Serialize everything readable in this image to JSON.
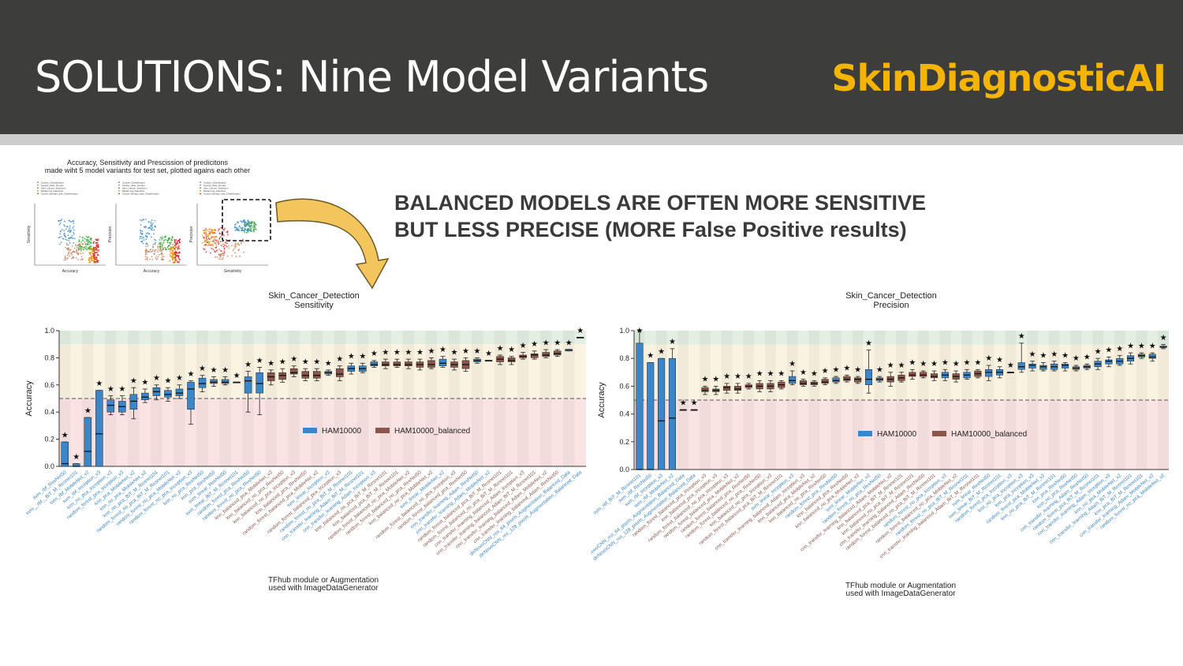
{
  "header": {
    "title": "SOLUTIONS: Nine Model Variants",
    "logo_text": "SkinDiagnosticAI",
    "bg_color": "#3d3d3b",
    "logo_color": "#f4b400"
  },
  "headline": {
    "line1": "BALANCED MODELS ARE OFTEN MORE SENSITIVE",
    "line2": "BUT LESS PRECISE (MORE False Positive results)"
  },
  "thumbnail": {
    "title_line1": "Accuracy, Sensitivity and Prescission of predicitons",
    "title_line2": "made wiht 5 model variants for test set, plotted agains each other",
    "panels": [
      {
        "xlabel": "Accuracy",
        "ylabel": "Sensitivity"
      },
      {
        "xlabel": "Accuracy",
        "ylabel": "Precision"
      },
      {
        "xlabel": "Sensitivity",
        "ylabel": "Precision"
      }
    ],
    "legend_items": [
      "Cancer_Classification",
      "Cancer_Risk_Groups",
      "Skin_Cancer_Detection",
      "Melanoma_Detection",
      "Cancer_Benign_and_Classification"
    ],
    "series_colors": [
      "#3a86c8",
      "#c47d52",
      "#3aa63a",
      "#e8940c",
      "#d62020"
    ]
  },
  "chart_data": [
    {
      "type": "box",
      "title": "Skin_Cancer_Detection\nSensitivity",
      "title_line1": "Skin_Cancer_Detection",
      "title_line2": "Sensitivity",
      "xlabel_line1": "TFhub module or Augmentation",
      "xlabel_line2": "used with ImageDataGenerator",
      "ylabel": "Accuracy",
      "ylim": [
        0,
        1.0
      ],
      "yticks": [
        "0.0",
        "0.2",
        "0.4",
        "0.6",
        "0.8",
        "1.0"
      ],
      "threshold": 0.5,
      "legend": [
        "HAM10000",
        "HAM10000_balanced"
      ],
      "colors": {
        "HAM10000": "#3a86c8",
        "HAM10000_balanced": "#8c564b"
      },
      "categories": [
        "svm_rbf_ResNet50",
        "svm__rbf__BiT_M_Resnet101",
        "svm_rbf_MobileNet_v2",
        "svm_rbf_Inception_v3",
        "knn_no_pca_Inception_v3",
        "random_forest_pca_Inception_v3",
        "knn_pca_MobileNet_v2",
        "knn_no_pca_MobileNet_v2",
        "knn_no_pca_BiT_M_Resnet101",
        "random_forest_no_pca_BiT_M_Resnet101",
        "random_forest_no_pca_MobileNet_v2",
        "random_forest_no_pca_Inception_v3",
        "knn_no_pca_ResNet50",
        "knn_pca_ResNet50",
        "svm_linear_ResNet50",
        "svm_linear_BiT_M_Resnet101",
        "random_forest_pca_ResNet50",
        "random_forest_no_pca_ResNet50",
        "knn_balanced_pca_MobileNet_v2",
        "knn_balanced_no_pca_ResNet50",
        "knn_balanced_no_pca_Inception_v3",
        "knn_balanced_pca_ResNet50",
        "random_forest_balanced_pca_MobileNet_v2",
        "svm_linear_Inception_v3",
        "random_forest_balanced_pca_Inception_v3",
        "random_forest_no_pca_BiT_M_Resnet101",
        "cnn_transfer_learning_Adam_BiT_M_Resnet101",
        "cnn_transfer_learning_Adam_Inception_v3",
        "knn_balanced_no_pca_BiT_M_Resnet101",
        "knn_balanced_pca_BiT_M_Resnet101",
        "random_forest_balanced_no_pca_MobileNet_v2",
        "random_forest_balanced_no_pca_ResNet50",
        "knn_balanced_no_pca_MobileNet_v2",
        "svm_linear_MobileNet_v2",
        "random_forest_balanced_no_pca_Inception_v3",
        "random_forest_balanced_pca_ResNet50",
        "cnn_transfer_learning_Adam_ResNet50",
        "cnn_transfer_learning_Adam_MobileNet_v2",
        "random_forest_balanced_pca_BiT_M_Resnet101",
        "random_forest_balanced_no_pca_BiT_M_Resnet101",
        "cnn_transfer_learning_balanced_Adam_Inception_v3",
        "cnn_transfer_learning_balanced_Adam_BiT_M_Resnet101",
        "cnn_transfer_learning_balanced_Adam_MobileNet_v2",
        "cnn_transfer_learning_balanced_Adam_ResNet50",
        "deNovoCNN_res_64_pixels_Augmentation_Balanced_Data",
        "deNovoCNN_res_128_pixels_Augmentation_Balanced_Data"
      ],
      "groups": [
        "A",
        "A",
        "A",
        "A",
        "A",
        "A",
        "A",
        "A",
        "A",
        "A",
        "A",
        "A",
        "A",
        "A",
        "A",
        "A",
        "A",
        "A",
        "B",
        "B",
        "B",
        "B",
        "B",
        "A",
        "B",
        "A",
        "A",
        "A",
        "B",
        "B",
        "B",
        "B",
        "B",
        "A",
        "B",
        "B",
        "A",
        "A",
        "B",
        "B",
        "B",
        "B",
        "B",
        "B",
        "A",
        "A"
      ],
      "boxes": [
        [
          0.0,
          0.0,
          0.02,
          0.18,
          0.18
        ],
        [
          0.0,
          0.0,
          0.0,
          0.02,
          0.02
        ],
        [
          0.0,
          0.0,
          0.11,
          0.36,
          0.36
        ],
        [
          0.0,
          0.0,
          0.24,
          0.56,
          0.56
        ],
        [
          0.38,
          0.4,
          0.45,
          0.49,
          0.52
        ],
        [
          0.38,
          0.4,
          0.44,
          0.48,
          0.52
        ],
        [
          0.35,
          0.42,
          0.48,
          0.53,
          0.58
        ],
        [
          0.47,
          0.49,
          0.51,
          0.54,
          0.57
        ],
        [
          0.49,
          0.52,
          0.55,
          0.58,
          0.6
        ],
        [
          0.48,
          0.51,
          0.53,
          0.56,
          0.58
        ],
        [
          0.5,
          0.52,
          0.54,
          0.57,
          0.6
        ],
        [
          0.31,
          0.42,
          0.57,
          0.62,
          0.63
        ],
        [
          0.55,
          0.58,
          0.61,
          0.65,
          0.67
        ],
        [
          0.59,
          0.61,
          0.62,
          0.64,
          0.66
        ],
        [
          0.6,
          0.61,
          0.62,
          0.64,
          0.66
        ],
        [
          0.62,
          0.62,
          0.62,
          0.62,
          0.62
        ],
        [
          0.4,
          0.54,
          0.63,
          0.66,
          0.7
        ],
        [
          0.38,
          0.54,
          0.61,
          0.69,
          0.73
        ],
        [
          0.6,
          0.63,
          0.66,
          0.69,
          0.71
        ],
        [
          0.62,
          0.64,
          0.67,
          0.69,
          0.72
        ],
        [
          0.66,
          0.68,
          0.69,
          0.72,
          0.74
        ],
        [
          0.63,
          0.65,
          0.67,
          0.7,
          0.72
        ],
        [
          0.63,
          0.65,
          0.67,
          0.7,
          0.72
        ],
        [
          0.67,
          0.68,
          0.69,
          0.7,
          0.71
        ],
        [
          0.63,
          0.66,
          0.68,
          0.72,
          0.74
        ],
        [
          0.68,
          0.7,
          0.72,
          0.74,
          0.76
        ],
        [
          0.69,
          0.7,
          0.72,
          0.74,
          0.76
        ],
        [
          0.73,
          0.74,
          0.75,
          0.77,
          0.78
        ],
        [
          0.72,
          0.74,
          0.75,
          0.77,
          0.79
        ],
        [
          0.73,
          0.74,
          0.75,
          0.77,
          0.79
        ],
        [
          0.72,
          0.74,
          0.75,
          0.77,
          0.79
        ],
        [
          0.71,
          0.73,
          0.75,
          0.77,
          0.79
        ],
        [
          0.72,
          0.73,
          0.75,
          0.78,
          0.8
        ],
        [
          0.73,
          0.74,
          0.76,
          0.79,
          0.81
        ],
        [
          0.71,
          0.73,
          0.75,
          0.77,
          0.79
        ],
        [
          0.7,
          0.72,
          0.75,
          0.78,
          0.8
        ],
        [
          0.76,
          0.77,
          0.78,
          0.79,
          0.8
        ],
        [
          0.78,
          0.78,
          0.78,
          0.78,
          0.78
        ],
        [
          0.75,
          0.77,
          0.79,
          0.81,
          0.82
        ],
        [
          0.75,
          0.77,
          0.78,
          0.8,
          0.81
        ],
        [
          0.79,
          0.8,
          0.81,
          0.82,
          0.84
        ],
        [
          0.79,
          0.8,
          0.82,
          0.83,
          0.85
        ],
        [
          0.8,
          0.81,
          0.82,
          0.84,
          0.86
        ],
        [
          0.81,
          0.82,
          0.83,
          0.85,
          0.86
        ],
        [
          0.85,
          0.85,
          0.86,
          0.86,
          0.86
        ],
        [
          0.95,
          0.95,
          0.95,
          0.95,
          0.95
        ]
      ]
    },
    {
      "type": "box",
      "title": "Skin_Cancer_Detection\nPrecision",
      "title_line1": "Skin_Cancer_Detection",
      "title_line2": "Precision",
      "xlabel_line1": "TFhub module or Augmentation",
      "xlabel_line2": "used with ImageDataGenerator",
      "ylabel": "Accuracy",
      "ylim": [
        0,
        1.0
      ],
      "yticks": [
        "0.0",
        "0.2",
        "0.4",
        "0.6",
        "0.8",
        "1.0"
      ],
      "threshold": 0.5,
      "legend": [
        "HAM10000",
        "HAM10000_balanced"
      ],
      "colors": {
        "HAM10000": "#3a86c8",
        "HAM10000_balanced": "#8c564b"
      },
      "categories": [
        "svm_rbf_BiT_M_Resnet101",
        "svm_rbf_ResNet50",
        "svm_rbf_Inception_v3",
        "svm_rbf_MobileNet_v2",
        "deNovoCNN_res_64_pixels_Augmentation_Balanced_Data",
        "deNovoCNN_res_128_pixels_Augmentation_Balanced_Data",
        "random_forest_balanced_pca_Inception_v3",
        "knn_balanced_pca_Inception_v3",
        "random_forest_balanced_no_pca_Inception_v3",
        "random_forest_balanced_pca_MobileNet_v2",
        "random_forest_balanced_pca_ResNet50",
        "random_forest_balanced_no_pca_ResNet50",
        "knn_balanced_no_pca_Inception_v3",
        "random_forest_balanced_pca_BiT_M_Resnet101",
        "svm_linear_Inception_v3",
        "cnn_transfer_learning_balanced_Adam_Inception_v3",
        "knn_balanced_pca_MobileNet_v2",
        "knn_balanced_no_pca_ResNet50",
        "random_forest_pca_ResNet50",
        "knn_balanced_pca_ResNet50",
        "knn_balanced_no_pca_MobileNet_v2",
        "svm_linear_MobileNet_v2",
        "random_forest_no_pca_ResNet50",
        "cnn_transfer_learning_balanced_Adam_MobileNet_v2",
        "knn_balanced_pca_BiT_M_Resnet101",
        "knn_balanced_no_pca_BiT_M_Resnet101",
        "cnn_transfer_learning_balanced_Adam_ResNet50",
        "random_forest_balanced_no_pca_BiT_M_Resnet101",
        "random_forest_no_pca_Inception_v3",
        "random_forest_balanced_no_pca_MobileNet_v2",
        "random_forest_no_pca_BiT_M_Resnet101",
        "cnn_transfer_learning_balanced_Adam_BiT_M_Resnet101",
        "svm_linear_ResNet50",
        "svm_linear_BiT_M_Resnet101",
        "random_forest_pca_Inception_v3",
        "knn_no_pca_Inception_v3",
        "knn_pca_Inception_v3",
        "random_forest_pca_MobileNet_v2",
        "knn_no_pca_BiT_M_Resnet101",
        "knn_pca_ResNet50",
        "knn_no_pca_ResNet50",
        "cnn_transfer_learning_Adam_ResNet50",
        "random_forest_pca_BiT_M_Resnet101",
        "cnn_transfer_learning_Adam_Inception_v3",
        "knn_no_pca_MobileNet_v2",
        "cnn_transfer_learning_Adam_BiT_M_Resnet101",
        "knn_pca_BiT_M_Resnet101",
        "cnn_transfer_learning_Adam_MobileNet_v2",
        "random_forest_no_pca_MobileNet_v2"
      ],
      "groups": [
        "A",
        "A",
        "A",
        "A",
        "A",
        "A",
        "B",
        "B",
        "B",
        "B",
        "B",
        "B",
        "B",
        "B",
        "A",
        "B",
        "B",
        "B",
        "A",
        "B",
        "B",
        "A",
        "A",
        "B",
        "B",
        "B",
        "B",
        "B",
        "A",
        "B",
        "A",
        "B",
        "A",
        "A",
        "A",
        "A",
        "A",
        "A",
        "A",
        "A",
        "A",
        "A",
        "A",
        "A",
        "A",
        "A",
        "A",
        "A",
        "A"
      ],
      "boxes": [
        [
          0.0,
          0.0,
          0.0,
          0.91,
          1.0
        ],
        [
          0.0,
          0.0,
          0.0,
          0.77,
          0.77
        ],
        [
          0.0,
          0.0,
          0.35,
          0.8,
          0.8
        ],
        [
          0.0,
          0.0,
          0.37,
          0.8,
          0.87
        ],
        [
          0.43,
          0.43,
          0.43,
          0.43,
          0.43
        ],
        [
          0.43,
          0.43,
          0.43,
          0.43,
          0.43
        ],
        [
          0.54,
          0.56,
          0.57,
          0.59,
          0.6
        ],
        [
          0.54,
          0.56,
          0.57,
          0.58,
          0.6
        ],
        [
          0.55,
          0.57,
          0.59,
          0.6,
          0.62
        ],
        [
          0.55,
          0.57,
          0.58,
          0.6,
          0.62
        ],
        [
          0.58,
          0.59,
          0.6,
          0.61,
          0.62
        ],
        [
          0.56,
          0.58,
          0.6,
          0.62,
          0.64
        ],
        [
          0.56,
          0.58,
          0.6,
          0.62,
          0.64
        ],
        [
          0.58,
          0.59,
          0.61,
          0.63,
          0.64
        ],
        [
          0.61,
          0.62,
          0.64,
          0.67,
          0.71
        ],
        [
          0.6,
          0.61,
          0.62,
          0.64,
          0.65
        ],
        [
          0.6,
          0.61,
          0.62,
          0.63,
          0.64
        ],
        [
          0.61,
          0.62,
          0.63,
          0.65,
          0.66
        ],
        [
          0.62,
          0.63,
          0.64,
          0.66,
          0.67
        ],
        [
          0.63,
          0.64,
          0.65,
          0.67,
          0.68
        ],
        [
          0.62,
          0.63,
          0.65,
          0.66,
          0.67
        ],
        [
          0.55,
          0.61,
          0.65,
          0.72,
          0.86
        ],
        [
          0.63,
          0.64,
          0.65,
          0.66,
          0.67
        ],
        [
          0.6,
          0.63,
          0.65,
          0.67,
          0.7
        ],
        [
          0.63,
          0.64,
          0.66,
          0.68,
          0.7
        ],
        [
          0.65,
          0.67,
          0.68,
          0.7,
          0.72
        ],
        [
          0.66,
          0.67,
          0.68,
          0.7,
          0.71
        ],
        [
          0.64,
          0.66,
          0.67,
          0.69,
          0.71
        ],
        [
          0.64,
          0.66,
          0.68,
          0.7,
          0.72
        ],
        [
          0.63,
          0.65,
          0.67,
          0.69,
          0.71
        ],
        [
          0.65,
          0.66,
          0.68,
          0.7,
          0.72
        ],
        [
          0.66,
          0.67,
          0.69,
          0.71,
          0.72
        ],
        [
          0.64,
          0.67,
          0.7,
          0.72,
          0.75
        ],
        [
          0.66,
          0.68,
          0.7,
          0.72,
          0.74
        ],
        [
          0.7,
          0.7,
          0.7,
          0.7,
          0.7
        ],
        [
          0.7,
          0.72,
          0.74,
          0.77,
          0.91
        ],
        [
          0.71,
          0.73,
          0.75,
          0.76,
          0.78
        ],
        [
          0.71,
          0.72,
          0.74,
          0.75,
          0.77
        ],
        [
          0.71,
          0.72,
          0.74,
          0.76,
          0.78
        ],
        [
          0.71,
          0.73,
          0.75,
          0.76,
          0.77
        ],
        [
          0.71,
          0.72,
          0.73,
          0.74,
          0.75
        ],
        [
          0.72,
          0.73,
          0.74,
          0.75,
          0.76
        ],
        [
          0.72,
          0.74,
          0.76,
          0.78,
          0.8
        ],
        [
          0.74,
          0.76,
          0.78,
          0.79,
          0.81
        ],
        [
          0.75,
          0.76,
          0.78,
          0.8,
          0.82
        ],
        [
          0.76,
          0.78,
          0.8,
          0.82,
          0.84
        ],
        [
          0.8,
          0.81,
          0.82,
          0.83,
          0.84
        ],
        [
          0.78,
          0.8,
          0.81,
          0.83,
          0.84
        ],
        [
          0.87,
          0.88,
          0.88,
          0.89,
          0.9
        ]
      ]
    }
  ]
}
